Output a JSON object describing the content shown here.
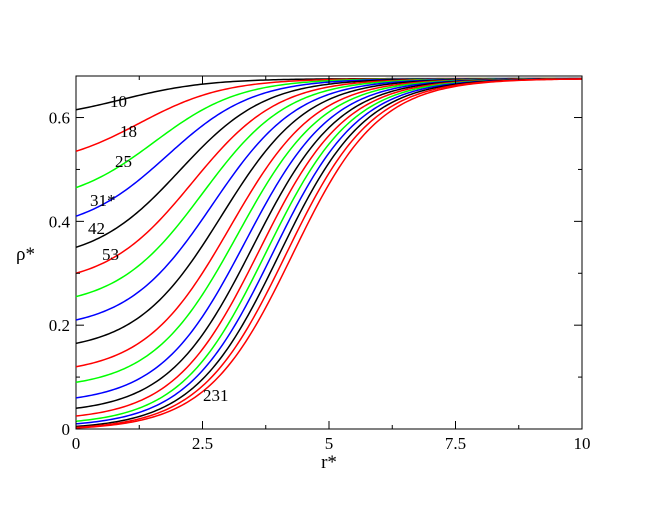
{
  "chart_data": {
    "type": "line",
    "title": "",
    "xlabel": "r*",
    "ylabel": "ρ*",
    "xlim": [
      0,
      10
    ],
    "ylim": [
      0,
      0.68
    ],
    "x_ticks": [
      {
        "value": 0,
        "label": "0"
      },
      {
        "value": 2.5,
        "label": "2.5"
      },
      {
        "value": 5,
        "label": "5"
      },
      {
        "value": 7.5,
        "label": "7.5"
      },
      {
        "value": 10,
        "label": "10"
      }
    ],
    "y_ticks": [
      {
        "value": 0,
        "label": "0"
      },
      {
        "value": 0.2,
        "label": "0.2"
      },
      {
        "value": 0.4,
        "label": "0.4"
      },
      {
        "value": 0.6,
        "label": "0.6"
      }
    ],
    "grid": false,
    "legend": "none",
    "plateau": 0.675,
    "series": [
      {
        "label": "10",
        "color": "#000000",
        "rho0": 0.615,
        "r_half": 0.9
      },
      {
        "label": "18",
        "color": "#ff0000",
        "rho0": 0.535,
        "r_half": 1.25
      },
      {
        "label": "25",
        "color": "#00ff00",
        "rho0": 0.465,
        "r_half": 1.55
      },
      {
        "label": "31*",
        "color": "#0000ff",
        "rho0": 0.41,
        "r_half": 1.8
      },
      {
        "label": "42",
        "color": "#000000",
        "rho0": 0.35,
        "r_half": 2.05
      },
      {
        "label": "53",
        "color": "#ff0000",
        "rho0": 0.3,
        "r_half": 2.3
      },
      {
        "label": "",
        "color": "#00ff00",
        "rho0": 0.255,
        "r_half": 2.5
      },
      {
        "label": "",
        "color": "#0000ff",
        "rho0": 0.21,
        "r_half": 2.7
      },
      {
        "label": "",
        "color": "#000000",
        "rho0": 0.165,
        "r_half": 2.88
      },
      {
        "label": "",
        "color": "#ff0000",
        "rho0": 0.12,
        "r_half": 3.05
      },
      {
        "label": "",
        "color": "#00ff00",
        "rho0": 0.09,
        "r_half": 3.2
      },
      {
        "label": "",
        "color": "#0000ff",
        "rho0": 0.06,
        "r_half": 3.35
      },
      {
        "label": "",
        "color": "#000000",
        "rho0": 0.04,
        "r_half": 3.5
      },
      {
        "label": "",
        "color": "#ff0000",
        "rho0": 0.025,
        "r_half": 3.63
      },
      {
        "label": "",
        "color": "#00ff00",
        "rho0": 0.015,
        "r_half": 3.76
      },
      {
        "label": "",
        "color": "#0000ff",
        "rho0": 0.01,
        "r_half": 3.89
      },
      {
        "label": "",
        "color": "#000000",
        "rho0": 0.005,
        "r_half": 4.02
      },
      {
        "label": "",
        "color": "#ff0000",
        "rho0": 0.003,
        "r_half": 4.15
      },
      {
        "label": "231",
        "color": "#ff0000",
        "rho0": 0.002,
        "r_half": 4.28
      }
    ],
    "annotations": [
      "10",
      "18",
      "25",
      "31*",
      "42",
      "53",
      "231"
    ]
  }
}
